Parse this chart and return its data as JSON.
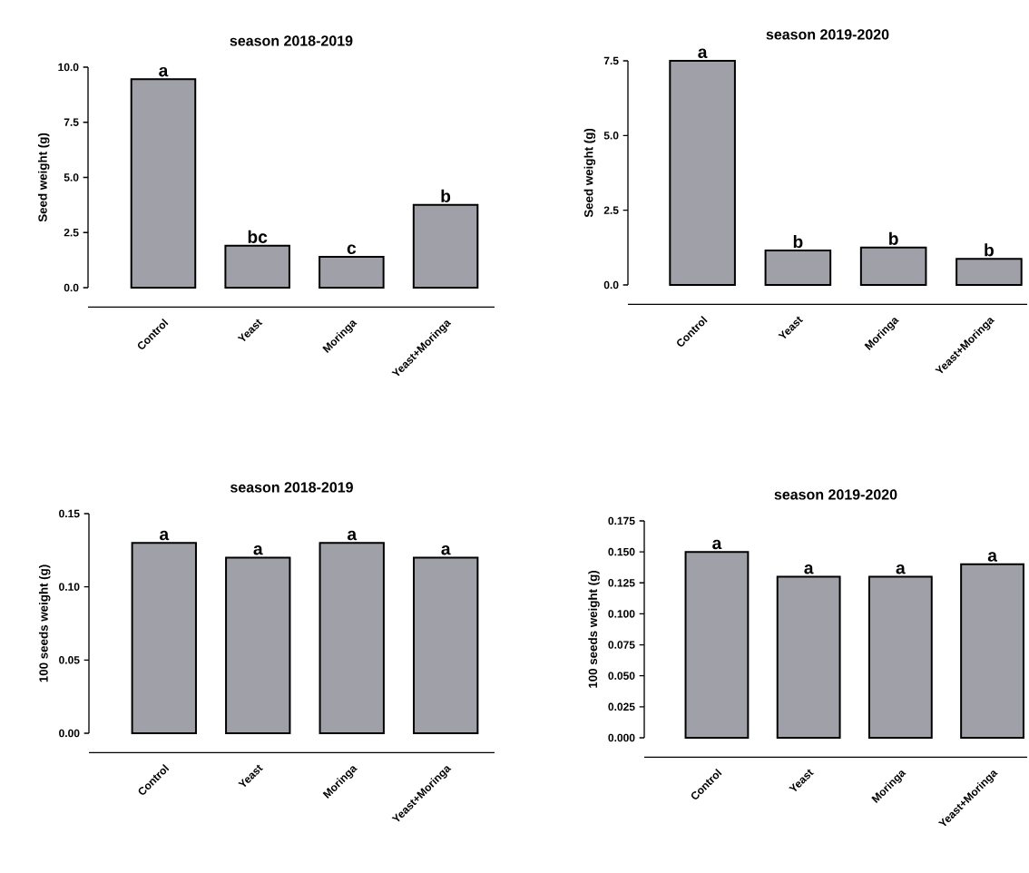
{
  "chart_data": [
    {
      "type": "bar",
      "title": "season 2018-2019",
      "ylabel": "Seed weight (g)",
      "categories": [
        "Control",
        "Yeast",
        "Moringa",
        "Yeast+Moringa"
      ],
      "values": [
        9.45,
        1.9,
        1.4,
        3.75
      ],
      "color": "#a0a0a8",
      "ylim": [
        0,
        10
      ],
      "yticks": [
        {
          "value": 0,
          "label": "0.0"
        },
        2.5,
        {
          "value": 5,
          "label": "5.0"
        },
        7.5,
        {
          "value": 10,
          "label": "10.0"
        }
      ],
      "annotations": [
        {
          "text": "a",
          "x": "Control",
          "y": 9.45
        },
        {
          "text": "bc",
          "x": "Yeast",
          "y": 1.9
        },
        {
          "text": "c",
          "x": "Moringa",
          "y": 1.4
        },
        {
          "text": "b",
          "x": "Yeast+Moringa",
          "y": 3.75
        }
      ]
    },
    {
      "type": "bar",
      "title": "season 2019-2020",
      "ylabel": "Seed weight (g)",
      "categories": [
        "Control",
        "Yeast",
        "Moringa",
        "Yeast+Moringa"
      ],
      "values": [
        7.5,
        1.15,
        1.25,
        0.87
      ],
      "color": "#a0a0a8",
      "ylim": [
        0,
        7.5
      ],
      "yticks": [
        {
          "value": 0,
          "label": "0.0"
        },
        2.5,
        {
          "value": 5,
          "label": "5.0"
        },
        7.5
      ],
      "annotations": [
        {
          "text": "a",
          "x": "Control",
          "y": 7.5
        },
        {
          "text": "b",
          "x": "Yeast",
          "y": 1.15
        },
        {
          "text": "b",
          "x": "Moringa",
          "y": 1.25
        },
        {
          "text": "b",
          "x": "Yeast+Moringa",
          "y": 0.87
        }
      ]
    },
    {
      "type": "bar",
      "title": "season 2018-2019",
      "ylabel": "100 seeds weight (g)",
      "categories": [
        "Control",
        "Yeast",
        "Moringa",
        "Yeast+Moringa"
      ],
      "values": [
        0.13,
        0.12,
        0.13,
        0.12
      ],
      "color": "#a0a0a8",
      "ylim": [
        0,
        0.15
      ],
      "yticks": [
        {
          "value": 0,
          "label": "0.00"
        },
        0.05,
        {
          "value": 0.1,
          "label": "0.10"
        },
        0.15
      ],
      "annotations": [
        {
          "text": "a",
          "x": "Control",
          "y": 0.13
        },
        {
          "text": "a",
          "x": "Yeast",
          "y": 0.12
        },
        {
          "text": "a",
          "x": "Moringa",
          "y": 0.13
        },
        {
          "text": "a",
          "x": "Yeast+Moringa",
          "y": 0.12
        }
      ]
    },
    {
      "type": "bar",
      "title": "season 2019-2020",
      "ylabel": "100 seeds weight (g)",
      "categories": [
        "Control",
        "Yeast",
        "Moringa",
        "Yeast+Moringa"
      ],
      "values": [
        0.15,
        0.13,
        0.13,
        0.14
      ],
      "color": "#a0a0a8",
      "ylim": [
        0,
        0.175
      ],
      "yticks": [
        {
          "value": 0,
          "label": "0.000"
        },
        0.025,
        {
          "value": 0.05,
          "label": "0.050"
        },
        0.075,
        {
          "value": 0.1,
          "label": "0.100"
        },
        0.125,
        {
          "value": 0.15,
          "label": "0.150"
        },
        0.175
      ],
      "annotations": [
        {
          "text": "a",
          "x": "Control",
          "y": 0.15
        },
        {
          "text": "a",
          "x": "Yeast",
          "y": 0.13
        },
        {
          "text": "a",
          "x": "Moringa",
          "y": 0.13
        },
        {
          "text": "a",
          "x": "Yeast+Moringa",
          "y": 0.14
        }
      ]
    }
  ]
}
